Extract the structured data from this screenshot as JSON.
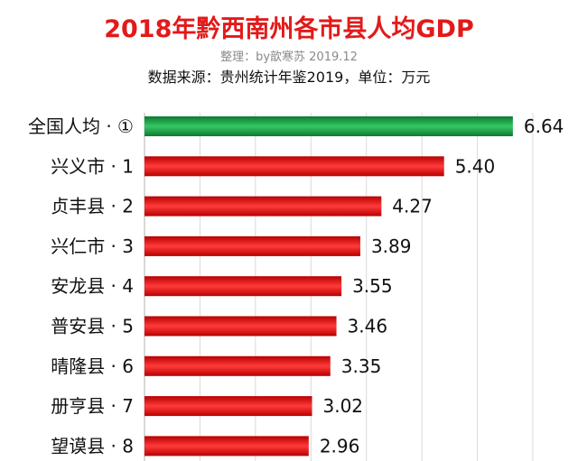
{
  "header": {
    "title": "2018年黔西南州各市县人均GDP",
    "credit": "整理：by歆寒苏 2019.12",
    "source": "数据来源：贵州统计年鉴2019，单位：万元"
  },
  "colors": {
    "title": "#e21a1a",
    "highlight_bar": "#20a84a",
    "bar": "#ee1c1c",
    "grid": "#d9d9d9"
  },
  "chart_data": {
    "type": "bar",
    "orientation": "horizontal",
    "title": "2018年黔西南州各市县人均GDP",
    "categories": [
      "全国人均 · ①",
      "兴义市 · 1",
      "贞丰县 · 2",
      "兴仁市 · 3",
      "安龙县 · 4",
      "普安县 · 5",
      "晴隆县 · 6",
      "册亨县 · 7",
      "望谟县 · 8"
    ],
    "values": [
      6.64,
      5.4,
      4.27,
      3.89,
      3.55,
      3.46,
      3.35,
      3.02,
      2.96
    ],
    "value_labels": [
      "6.64",
      "5.40",
      "4.27",
      "3.89",
      "3.55",
      "3.46",
      "3.35",
      "3.02",
      "2.96"
    ],
    "highlight_index": 0,
    "grid": true,
    "xlim": [
      0,
      7
    ]
  }
}
